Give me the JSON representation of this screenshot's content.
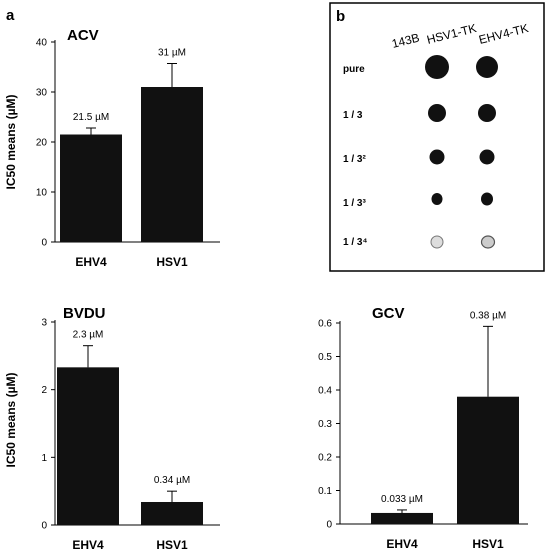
{
  "panel_labels": {
    "a": "a",
    "b": "b"
  },
  "shared_ylabel": "IC50 means (µM)",
  "chart_data": [
    {
      "type": "bar",
      "title": "ACV",
      "categories": [
        "EHV4",
        "HSV1"
      ],
      "values": [
        21.5,
        31
      ],
      "errors": [
        1.3,
        4.7
      ],
      "data_labels": [
        "21.5 µM",
        "31 µM"
      ],
      "ylim": [
        0,
        40
      ],
      "yticks": [
        "0",
        "10",
        "20",
        "30",
        "40"
      ],
      "xlabel": "",
      "ylabel": "IC50 means (µM)"
    },
    {
      "type": "bar",
      "title": "BVDU",
      "categories": [
        "EHV4",
        "HSV1"
      ],
      "values": [
        2.33,
        0.34
      ],
      "errors": [
        0.32,
        0.16
      ],
      "data_labels": [
        "2.3 µM",
        "0.34 µM"
      ],
      "ylim": [
        0,
        3
      ],
      "yticks": [
        "0",
        "1",
        "2",
        "3"
      ],
      "xlabel": "",
      "ylabel": "IC50 means (µM)"
    },
    {
      "type": "bar",
      "title": "GCV",
      "categories": [
        "EHV4",
        "HSV1"
      ],
      "values": [
        0.033,
        0.38
      ],
      "errors": [
        0.009,
        0.21
      ],
      "data_labels": [
        "0.033 µM",
        "0.38 µM"
      ],
      "ylim": [
        0,
        0.6
      ],
      "yticks": [
        "0",
        "0.1",
        "0.2",
        "0.3",
        "0.4",
        "0.5",
        "0.6"
      ],
      "xlabel": "",
      "ylabel": ""
    }
  ],
  "dot_blot": {
    "columns": [
      "143B",
      "HSV1-TK",
      "EHV4-TK"
    ],
    "rows": [
      "pure",
      "1 / 3",
      "1 / 3²",
      "1 / 3³",
      "1 / 3⁴"
    ]
  }
}
